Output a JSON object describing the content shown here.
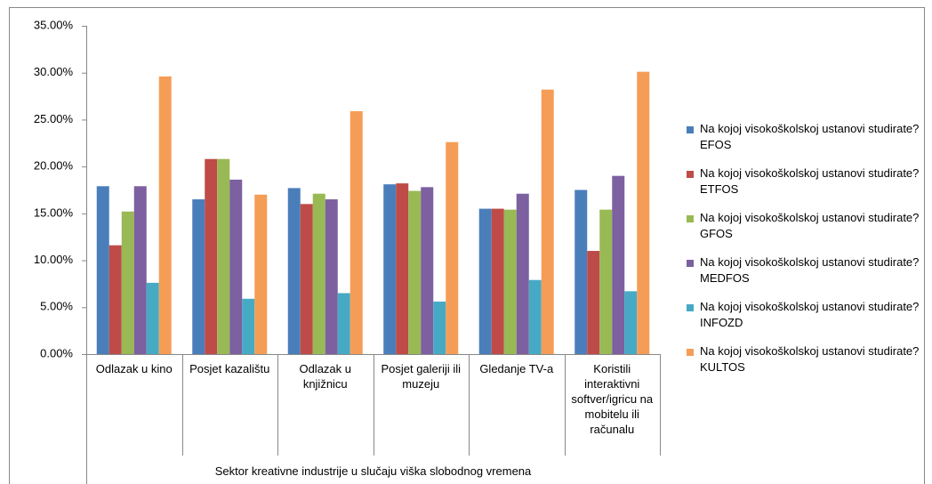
{
  "chart_data": {
    "type": "bar",
    "x_label": "Sektor kreativne industrije u slučaju viška slobodnog vremena",
    "categories": [
      "Odlazak u kino",
      "Posjet kazalištu",
      "Odlazak u knjižnicu",
      "Posjet galeriji ili muzeju",
      "Gledanje TV-a",
      "Koristili interaktivni softver/igricu na mobitelu ili računalu"
    ],
    "series": [
      {
        "name": "Na kojoj visokoškolskoj ustanovi studirate? EFOS",
        "color": "#4a7ebb",
        "values": [
          17.9,
          16.5,
          17.7,
          18.1,
          15.5,
          17.5
        ]
      },
      {
        "name": "Na kojoj visokoškolskoj ustanovi studirate? ETFOS",
        "color": "#be4b48",
        "values": [
          11.6,
          20.8,
          16.0,
          18.2,
          15.5,
          11.0
        ]
      },
      {
        "name": "Na kojoj visokoškolskoj ustanovi studirate? GFOS",
        "color": "#98b954",
        "values": [
          15.2,
          20.8,
          17.1,
          17.4,
          15.4,
          15.4
        ]
      },
      {
        "name": "Na kojoj visokoškolskoj ustanovi studirate? MEDFOS",
        "color": "#7d60a0",
        "values": [
          17.9,
          18.6,
          16.5,
          17.8,
          17.1,
          19.0
        ]
      },
      {
        "name": "Na kojoj visokoškolskoj ustanovi studirate? INFOZD",
        "color": "#46aac5",
        "values": [
          7.6,
          5.9,
          6.5,
          5.6,
          7.9,
          6.7
        ]
      },
      {
        "name": "Na kojoj visokoškolskoj ustanovi studirate? KULTOS",
        "color": "#f59d56",
        "values": [
          29.6,
          17.0,
          25.9,
          22.6,
          28.2,
          30.1
        ]
      }
    ],
    "ylim": [
      0,
      35
    ],
    "yticks": [
      {
        "value": 0,
        "label": "0.00%"
      },
      {
        "value": 5,
        "label": "5.00%"
      },
      {
        "value": 10,
        "label": "10.00%"
      },
      {
        "value": 15,
        "label": "15.00%"
      },
      {
        "value": 20,
        "label": "20.00%"
      },
      {
        "value": 25,
        "label": "25.00%"
      },
      {
        "value": 30,
        "label": "30.00%"
      },
      {
        "value": 35,
        "label": "35.00%"
      }
    ],
    "grid": false,
    "legend": "right"
  }
}
